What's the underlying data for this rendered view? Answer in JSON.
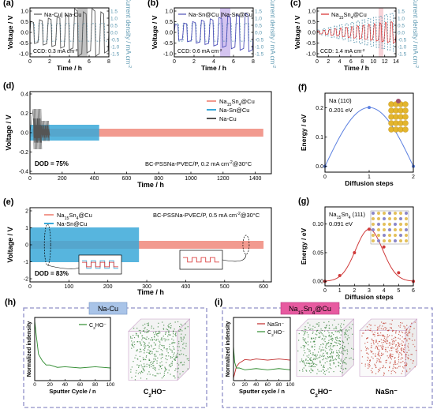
{
  "panels": {
    "a": {
      "label": "(a)",
      "legend": "Na-Cu| Na-Cu",
      "xlabel": "Time / h",
      "ylabel": "Voltage / V",
      "y2label": "Current density / mA cm",
      "y2sup": "-2",
      "ccd_prefix": "CCD: 0.3 mA cm",
      "ccd_sup": "-2",
      "xticks": [
        "0",
        "2",
        "4",
        "6",
        "8"
      ],
      "yticks": [
        "1.0",
        "0.5",
        "0.0",
        "-0.5",
        "-1.0"
      ],
      "y2ticks": [
        "1.5",
        "1.0",
        "0.5",
        "0.0",
        "-0.5",
        "-1.0",
        "-1.5"
      ]
    },
    "b": {
      "label": "(b)",
      "legend": "Na-Sn@Cu |Na-Sn@Cu",
      "xlabel": "Time / h",
      "ylabel": "Voltage / V",
      "y2label": "Current density / mA cm",
      "y2sup": "-2",
      "ccd_prefix": "CCD: 0.6 mA cm",
      "ccd_sup": "-2",
      "xticks": [
        "0",
        "2",
        "4",
        "6",
        "8"
      ],
      "yticks": [
        "1.0",
        "0.5",
        "0.0",
        "-0.5",
        "-1.0"
      ],
      "y2ticks": [
        "1.5",
        "1.0",
        "0.5",
        "0.0",
        "-0.5",
        "-1.0",
        "-1.5"
      ]
    },
    "c": {
      "label": "(c)",
      "legend_pre": "Na",
      "legend_sub1": "15",
      "legend_mid": "Sn",
      "legend_sub2": "4",
      "legend_post": "@Cu",
      "xlabel": "Time / h",
      "ylabel": "Voltage / V",
      "y2label": "Current density / mA cm",
      "y2sup": "-2",
      "ccd_prefix": "CCD: 1.4 mA cm",
      "ccd_sup": "-2",
      "xticks": [
        "0",
        "2",
        "4",
        "6",
        "8",
        "10",
        "12",
        "14"
      ],
      "yticks": [
        "1.0",
        "0.5",
        "0.0",
        "-0.5",
        "-1.0"
      ],
      "y2ticks": [
        "1.5",
        "1.0",
        "0.5",
        "0.0",
        "-0.5",
        "-1.0",
        "-1.5"
      ]
    },
    "d": {
      "label": "(d)",
      "legend1": "Na15Sn4@Cu",
      "legend2": "Na-Sn@Cu",
      "legend3": "Na-Cu",
      "xlabel": "Time / h",
      "ylabel": "Voltage / V",
      "dod": "DOD = 75%",
      "cond_pre": "BC-PSSNa-PVEC/P, 0.2 mA cm",
      "cond_sup": "-2",
      "cond_post": "@30°C",
      "xticks": [
        "0",
        "200",
        "400",
        "600",
        "800",
        "1000",
        "1200",
        "1400"
      ],
      "yticks": [
        "0.4",
        "0.2",
        "0.0",
        "-0.2",
        "-0.4"
      ]
    },
    "e": {
      "label": "(e)",
      "legend1": "Na15Sn4@Cu",
      "legend2": "Na-Sn@Cu",
      "xlabel": "Time / h",
      "ylabel": "Voltage / V",
      "dod": "DOD = 83%",
      "cond_pre": "BC-PSSNa-PVEC/P, 0.5 mA cm",
      "cond_sup": "-2",
      "cond_post": "@30°C",
      "xticks": [
        "0",
        "100",
        "200",
        "300",
        "400",
        "500",
        "600"
      ],
      "yticks": [
        "2",
        "1",
        "0",
        "-1",
        "-2"
      ]
    },
    "f": {
      "label": "(f)",
      "title": "Na (110)",
      "barrier": "0.201 eV",
      "xlabel": "Diffusion steps",
      "ylabel": "Energy / eV",
      "xticks": [
        "0",
        "1",
        "2"
      ],
      "yticks": [
        "0.2",
        "0.1",
        "0.0"
      ]
    },
    "g": {
      "label": "(g)",
      "title_pre": "Na",
      "title_sub1": "15",
      "title_mid": "Sn",
      "title_sub2": "4",
      "title_post": " (111)",
      "barrier": "0.091 eV",
      "xlabel": "Diffusion steps",
      "ylabel": "Energy / eV",
      "xticks": [
        "0",
        "1",
        "2",
        "3",
        "4",
        "5",
        "6"
      ],
      "yticks": [
        "0.10",
        "0.05",
        "0.00"
      ]
    },
    "h": {
      "label": "(h)",
      "header": "Na-Cu",
      "legend": "C2HO⁻",
      "xlabel": "Sputter Cycle / n",
      "ylabel": "Normalized indensity",
      "xticks": [
        "0",
        "20",
        "40",
        "60",
        "80",
        "100"
      ],
      "cube_label": "C2HO⁻"
    },
    "i": {
      "label": "(i)",
      "header_pre": "Na",
      "header_sub1": "15",
      "header_mid": "Sn",
      "header_sub2": "4",
      "header_post": "@Cu",
      "legend1": "NaSn⁻",
      "legend2": "C2HO⁻",
      "xlabel": "Sputter cycle / n",
      "ylabel": "Normalized indensity",
      "xticks": [
        "0",
        "20",
        "40",
        "60",
        "80",
        "100"
      ],
      "cube1_label": "C2HO⁻",
      "cube2_label": "NaSn⁻"
    }
  },
  "colors": {
    "nacu": "#555555",
    "nasn": "#3aa8d8",
    "na15": "#d72a2a",
    "salmon": "#f29a8f",
    "teal": "#5b97b0",
    "dft_f": "#5a7fe0",
    "dft_g": "#d03a3a",
    "frame": "#9090c8",
    "purple": "#b89ce6",
    "gray_band": "#9a9a9a",
    "pink_band": "#f2b8c0",
    "cube_green": "#2e7d32",
    "cube_red": "#c0392b"
  },
  "chart_data": [
    {
      "type": "line",
      "panel": "f",
      "title": "Na (110)",
      "xlabel": "Diffusion steps",
      "ylabel": "Energy / eV",
      "x": [
        0,
        1,
        2
      ],
      "values": [
        0.0,
        0.201,
        0.0
      ],
      "ylim": [
        -0.02,
        0.25
      ]
    },
    {
      "type": "line",
      "panel": "g",
      "xlabel": "Diffusion steps",
      "ylabel": "Energy / eV",
      "x": [
        0,
        1,
        2,
        3,
        4,
        5,
        6
      ],
      "values": [
        0.0,
        0.01,
        0.05,
        0.091,
        0.06,
        0.015,
        0.0
      ],
      "ylim": [
        -0.01,
        0.13
      ]
    },
    {
      "type": "line",
      "panel": "h",
      "xlabel": "Sputter Cycle / n",
      "ylabel": "Normalized indensity",
      "series": [
        {
          "name": "C2HO⁻",
          "x": [
            0,
            2,
            5,
            10,
            15,
            20,
            30,
            40,
            60,
            80,
            100
          ],
          "values": [
            1.0,
            0.75,
            0.45,
            0.32,
            0.27,
            0.25,
            0.23,
            0.22,
            0.22,
            0.22,
            0.22
          ]
        }
      ]
    },
    {
      "type": "line",
      "panel": "i",
      "xlabel": "Sputter cycle / n",
      "ylabel": "Normalized indensity",
      "series": [
        {
          "name": "NaSn⁻",
          "x": [
            0,
            5,
            10,
            20,
            30,
            40,
            60,
            80,
            100
          ],
          "values": [
            0.05,
            0.22,
            0.3,
            0.34,
            0.35,
            0.35,
            0.35,
            0.35,
            0.35
          ]
        },
        {
          "name": "C2HO⁻",
          "x": [
            0,
            2,
            5,
            10,
            20,
            40,
            60,
            80,
            100
          ],
          "values": [
            0.58,
            0.3,
            0.22,
            0.2,
            0.19,
            0.19,
            0.19,
            0.19,
            0.19
          ]
        }
      ]
    }
  ]
}
